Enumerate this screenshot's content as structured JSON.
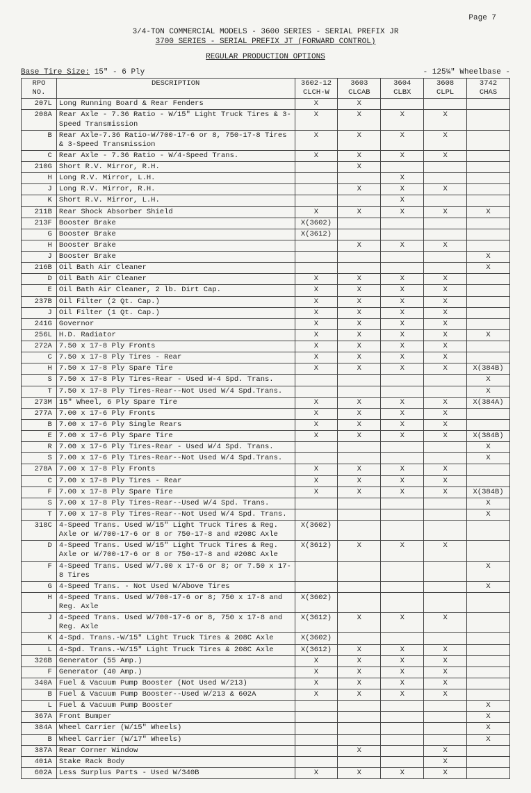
{
  "page_num": "Page 7",
  "header_line1": "3/4-TON COMMERCIAL MODELS - 3600 SERIES - SERIAL PREFIX JR",
  "header_line2": "3700 SERIES - SERIAL PREFIX JT (FORWARD CONTROL)",
  "section_title": "REGULAR PRODUCTION OPTIONS",
  "base_tire_label": "Base Tire Size:",
  "base_tire_value": "15\" - 6 Ply",
  "wheelbase": "- 125¼\" Wheelbase -",
  "columns": {
    "rpo": "RPO\nNO.",
    "desc": "DESCRIPTION",
    "m1": "3602-12\nCLCH-W",
    "m2": "3603\nCLCAB",
    "m3": "3604\nCLBX",
    "m4": "3608\nCLPL",
    "m5": "3742\nCHAS"
  },
  "rows": [
    {
      "rpo": "207L",
      "desc": "Long Running Board & Rear Fenders",
      "m": [
        "X",
        "X",
        "",
        "",
        ""
      ]
    },
    {
      "rpo": "208A",
      "desc": "Rear Axle - 7.36 Ratio - W/15\" Light Truck Tires & 3-Speed Transmission",
      "m": [
        "X",
        "X",
        "X",
        "X",
        ""
      ]
    },
    {
      "rpo": "B",
      "desc": "Rear Axle-7.36 Ratio-W/700-17-6 or 8, 750-17-8 Tires & 3-Speed Transmission",
      "m": [
        "X",
        "X",
        "X",
        "X",
        ""
      ]
    },
    {
      "rpo": "C",
      "desc": "Rear Axle - 7.36 Ratio - W/4-Speed Trans.",
      "m": [
        "X",
        "X",
        "X",
        "X",
        ""
      ]
    },
    {
      "rpo": "210G",
      "desc": "Short R.V. Mirror, R.H.",
      "m": [
        "",
        "X",
        "",
        "",
        ""
      ]
    },
    {
      "rpo": "H",
      "desc": "Long R.V. Mirror, L.H.",
      "m": [
        "",
        "",
        "X",
        "",
        ""
      ]
    },
    {
      "rpo": "J",
      "desc": "Long R.V. Mirror, R.H.",
      "m": [
        "",
        "X",
        "X",
        "X",
        ""
      ]
    },
    {
      "rpo": "K",
      "desc": "Short R.V. Mirror, L.H.",
      "m": [
        "",
        "",
        "X",
        "",
        ""
      ]
    },
    {
      "rpo": "211B",
      "desc": "Rear Shock Absorber Shield",
      "m": [
        "X",
        "X",
        "X",
        "X",
        "X"
      ]
    },
    {
      "rpo": "213F",
      "desc": "Booster Brake",
      "m": [
        "X(3602)",
        "",
        "",
        "",
        ""
      ]
    },
    {
      "rpo": "G",
      "desc": "Booster Brake",
      "m": [
        "X(3612)",
        "",
        "",
        "",
        ""
      ]
    },
    {
      "rpo": "H",
      "desc": "Booster Brake",
      "m": [
        "",
        "X",
        "X",
        "X",
        ""
      ]
    },
    {
      "rpo": "J",
      "desc": "Booster Brake",
      "m": [
        "",
        "",
        "",
        "",
        "X"
      ]
    },
    {
      "rpo": "216B",
      "desc": "Oil Bath Air Cleaner",
      "m": [
        "",
        "",
        "",
        "",
        "X"
      ]
    },
    {
      "rpo": "D",
      "desc": "Oil Bath Air Cleaner",
      "m": [
        "X",
        "X",
        "X",
        "X",
        ""
      ]
    },
    {
      "rpo": "E",
      "desc": "Oil Bath Air Cleaner, 2 lb. Dirt Cap.",
      "m": [
        "X",
        "X",
        "X",
        "X",
        ""
      ]
    },
    {
      "rpo": "237B",
      "desc": "Oil Filter (2 Qt. Cap.)",
      "m": [
        "X",
        "X",
        "X",
        "X",
        ""
      ]
    },
    {
      "rpo": "J",
      "desc": "Oil Filter (1 Qt. Cap.)",
      "m": [
        "X",
        "X",
        "X",
        "X",
        ""
      ]
    },
    {
      "rpo": "241G",
      "desc": "Governor",
      "m": [
        "X",
        "X",
        "X",
        "X",
        ""
      ]
    },
    {
      "rpo": "256L",
      "desc": "H.D. Radiator",
      "m": [
        "X",
        "X",
        "X",
        "X",
        "X"
      ]
    },
    {
      "rpo": "272A",
      "desc": "7.50 x 17-8 Ply Fronts",
      "m": [
        "X",
        "X",
        "X",
        "X",
        ""
      ]
    },
    {
      "rpo": "C",
      "desc": "7.50 x 17-8 Ply Tires - Rear",
      "m": [
        "X",
        "X",
        "X",
        "X",
        ""
      ]
    },
    {
      "rpo": "H",
      "desc": "7.50 x 17-8 Ply Spare Tire",
      "m": [
        "X",
        "X",
        "X",
        "X",
        "X(384B)"
      ]
    },
    {
      "rpo": "S",
      "desc": "7.50 x 17-8 Ply Tires-Rear - Used W-4 Spd. Trans.",
      "m": [
        "",
        "",
        "",
        "",
        "X"
      ]
    },
    {
      "rpo": "T",
      "desc": "7.50 x 17-8 Ply Tires-Rear--Not Used W/4 Spd.Trans.",
      "m": [
        "",
        "",
        "",
        "",
        "X"
      ]
    },
    {
      "rpo": "273M",
      "desc": "15\" Wheel, 6 Ply Spare Tire",
      "m": [
        "X",
        "X",
        "X",
        "X",
        "X(384A)"
      ]
    },
    {
      "rpo": "277A",
      "desc": "7.00 x 17-6 Ply Fronts",
      "m": [
        "X",
        "X",
        "X",
        "X",
        ""
      ]
    },
    {
      "rpo": "B",
      "desc": "7.00 x 17-6 Ply Single Rears",
      "m": [
        "X",
        "X",
        "X",
        "X",
        ""
      ]
    },
    {
      "rpo": "E",
      "desc": "7.00 x 17-6 Ply Spare Tire",
      "m": [
        "X",
        "X",
        "X",
        "X",
        "X(384B)"
      ]
    },
    {
      "rpo": "R",
      "desc": "7.00 x 17-6 Ply Tires-Rear - Used W/4 Spd. Trans.",
      "m": [
        "",
        "",
        "",
        "",
        "X"
      ]
    },
    {
      "rpo": "S",
      "desc": "7.00 x 17-6 Ply Tires-Rear--Not Used W/4 Spd.Trans.",
      "m": [
        "",
        "",
        "",
        "",
        "X"
      ]
    },
    {
      "rpo": "278A",
      "desc": "7.00 x 17-8 Ply Fronts",
      "m": [
        "X",
        "X",
        "X",
        "X",
        ""
      ]
    },
    {
      "rpo": "C",
      "desc": "7.00 x 17-8 Ply Tires - Rear",
      "m": [
        "X",
        "X",
        "X",
        "X",
        ""
      ]
    },
    {
      "rpo": "F",
      "desc": "7.00 x 17-8 Ply Spare Tire",
      "m": [
        "X",
        "X",
        "X",
        "X",
        "X(384B)"
      ]
    },
    {
      "rpo": "S",
      "desc": "7.00 x 17-8 Ply Tires-Rear--Used W/4 Spd. Trans.",
      "m": [
        "",
        "",
        "",
        "",
        "X"
      ]
    },
    {
      "rpo": "T",
      "desc": "7.00 x 17-8 Ply Tires-Rear--Not Used W/4 Spd. Trans.",
      "m": [
        "",
        "",
        "",
        "",
        "X"
      ]
    },
    {
      "rpo": "318C",
      "desc": "4-Speed Trans. Used W/15\" Light Truck Tires & Reg. Axle or W/700-17-6 or 8 or 750-17-8 and #208C Axle",
      "m": [
        "X(3602)",
        "",
        "",
        "",
        ""
      ]
    },
    {
      "rpo": "D",
      "desc": "4-Speed Trans. Used W/15\" Light Truck Tires & Reg. Axle or W/700-17-6 or 8 or 750-17-8 and #208C Axle",
      "m": [
        "X(3612)",
        "X",
        "X",
        "X",
        ""
      ]
    },
    {
      "rpo": "F",
      "desc": "4-Speed Trans. Used W/7.00 x 17-6 or 8; or 7.50 x 17-8 Tires",
      "m": [
        "",
        "",
        "",
        "",
        "X"
      ]
    },
    {
      "rpo": "G",
      "desc": "4-Speed Trans. - Not Used W/Above Tires",
      "m": [
        "",
        "",
        "",
        "",
        "X"
      ]
    },
    {
      "rpo": "H",
      "desc": "4-Speed Trans. Used W/700-17-6 or 8; 750 x 17-8 and Reg. Axle",
      "m": [
        "X(3602)",
        "",
        "",
        "",
        ""
      ]
    },
    {
      "rpo": "J",
      "desc": "4-Speed Trans. Used W/700-17-6 or 8, 750 x 17-8 and Reg. Axle",
      "m": [
        "X(3612)",
        "X",
        "X",
        "X",
        ""
      ]
    },
    {
      "rpo": "K",
      "desc": "4-Spd. Trans.-W/15\" Light Truck Tires & 208C Axle",
      "m": [
        "X(3602)",
        "",
        "",
        "",
        ""
      ]
    },
    {
      "rpo": "L",
      "desc": "4-Spd. Trans.-W/15\" Light Truck Tires & 208C Axle",
      "m": [
        "X(3612)",
        "X",
        "X",
        "X",
        ""
      ]
    },
    {
      "rpo": "326B",
      "desc": "Generator (55 Amp.)",
      "m": [
        "X",
        "X",
        "X",
        "X",
        ""
      ]
    },
    {
      "rpo": "F",
      "desc": "Generator (40 Amp.)",
      "m": [
        "X",
        "X",
        "X",
        "X",
        ""
      ]
    },
    {
      "rpo": "340A",
      "desc": "Fuel & Vacuum Pump Booster (Not Used W/213)",
      "m": [
        "X",
        "X",
        "X",
        "X",
        ""
      ]
    },
    {
      "rpo": "B",
      "desc": "Fuel & Vacuum Pump Booster--Used W/213 & 602A",
      "m": [
        "X",
        "X",
        "X",
        "X",
        ""
      ]
    },
    {
      "rpo": "L",
      "desc": "Fuel & Vacuum Pump Booster",
      "m": [
        "",
        "",
        "",
        "",
        "X"
      ]
    },
    {
      "rpo": "367A",
      "desc": "Front Bumper",
      "m": [
        "",
        "",
        "",
        "",
        "X"
      ]
    },
    {
      "rpo": "384A",
      "desc": "Wheel Carrier (W/15\" Wheels)",
      "m": [
        "",
        "",
        "",
        "",
        "X"
      ]
    },
    {
      "rpo": "B",
      "desc": "Wheel Carrier (W/17\" Wheels)",
      "m": [
        "",
        "",
        "",
        "",
        "X"
      ]
    },
    {
      "rpo": "387A",
      "desc": "Rear Corner Window",
      "m": [
        "",
        "X",
        "",
        "X",
        ""
      ]
    },
    {
      "rpo": "401A",
      "desc": "Stake Rack Body",
      "m": [
        "",
        "",
        "",
        "X",
        ""
      ]
    },
    {
      "rpo": "602A",
      "desc": "Less Surplus Parts - Used W/340B",
      "m": [
        "X",
        "X",
        "X",
        "X",
        ""
      ]
    }
  ]
}
